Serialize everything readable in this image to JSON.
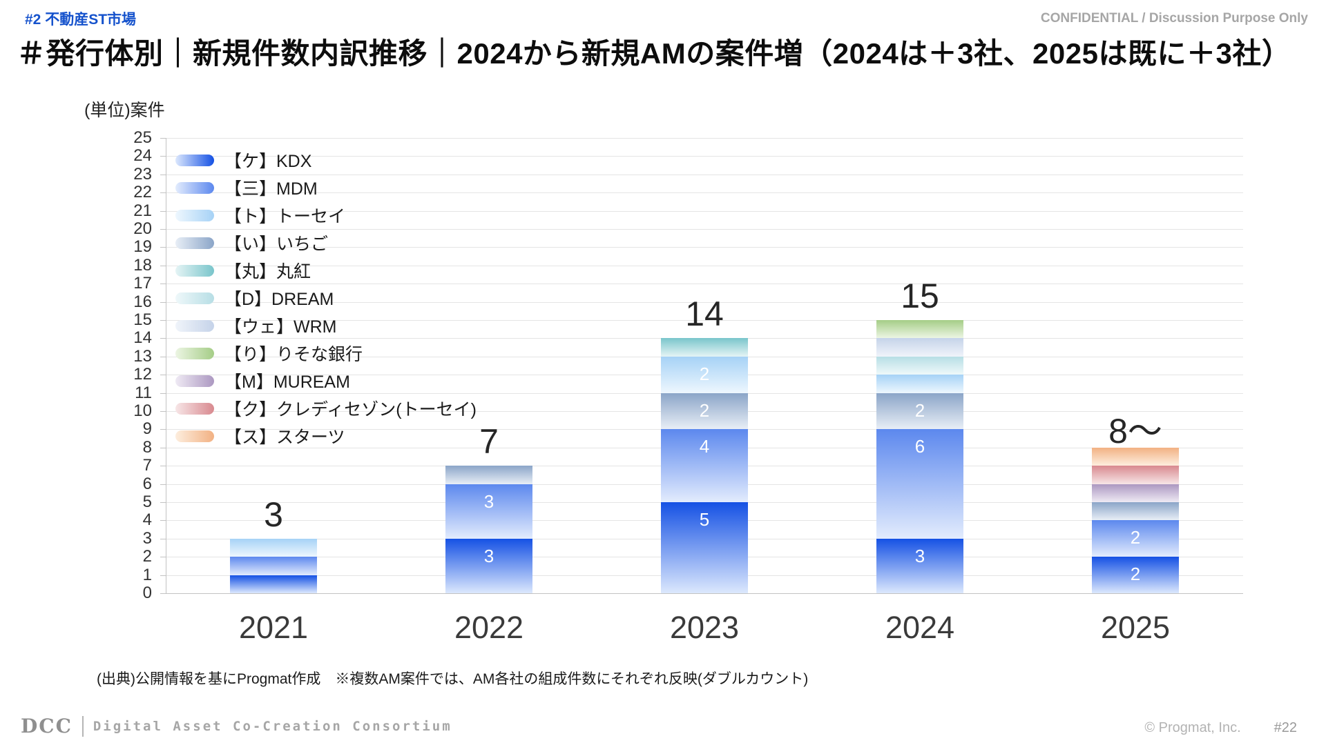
{
  "header": {
    "tag": "#2 不動産ST市場",
    "confidential": "CONFIDENTIAL / Discussion Purpose Only"
  },
  "title": "＃発行体別｜新規件数内訳推移｜2024から新規AMの案件増（2024は＋3社、2025は既に＋3社）",
  "chart_data": {
    "type": "bar",
    "stacked": true,
    "unit_label": "(単位)案件",
    "ylim": [
      0,
      25
    ],
    "ytick_step": 1,
    "grid": true,
    "legend_position": "top-left",
    "categories": [
      "2021",
      "2022",
      "2023",
      "2024",
      "2025"
    ],
    "totals": [
      "3",
      "7",
      "14",
      "15",
      "8～"
    ],
    "series": [
      {
        "key": "kdx",
        "name": "【ケ】KDX",
        "color": "#1551e4",
        "color_light": "#dce8fd"
      },
      {
        "key": "mdm",
        "name": "【三】MDM",
        "color": "#5c88ee",
        "color_light": "#e3ecfd"
      },
      {
        "key": "tosei",
        "name": "【ト】トーセイ",
        "color": "#a6d2f6",
        "color_light": "#eef7fe"
      },
      {
        "key": "ichigo",
        "name": "【い】いちご",
        "color": "#8ba5c8",
        "color_light": "#e8eef6"
      },
      {
        "key": "marubeni",
        "name": "【丸】丸紅",
        "color": "#79c5cb",
        "color_light": "#e5f4f5"
      },
      {
        "key": "dream",
        "name": "【D】DREAM",
        "color": "#b7dee5",
        "color_light": "#eff8fa"
      },
      {
        "key": "wrm",
        "name": "【ウェ】WRM",
        "color": "#c5d3e9",
        "color_light": "#f0f4fa"
      },
      {
        "key": "risona",
        "name": "【り】りそな銀行",
        "color": "#a5cd87",
        "color_light": "#ecf5e3"
      },
      {
        "key": "muream",
        "name": "【M】MUREAM",
        "color": "#ac98c1",
        "color_light": "#efeaf4"
      },
      {
        "key": "credit",
        "name": "【ク】クレディセゾン(トーセイ)",
        "color": "#d8898f",
        "color_light": "#f7e6e7"
      },
      {
        "key": "starts",
        "name": "【ス】スターツ",
        "color": "#f2b183",
        "color_light": "#fdeede"
      }
    ],
    "bars": [
      {
        "category": "2021",
        "total": "3",
        "segments": [
          {
            "series": "kdx",
            "value": 1,
            "label": ""
          },
          {
            "series": "mdm",
            "value": 1,
            "label": ""
          },
          {
            "series": "tosei",
            "value": 1,
            "label": ""
          }
        ]
      },
      {
        "category": "2022",
        "total": "7",
        "segments": [
          {
            "series": "kdx",
            "value": 3,
            "label": "3"
          },
          {
            "series": "mdm",
            "value": 3,
            "label": "3"
          },
          {
            "series": "ichigo",
            "value": 1,
            "label": ""
          }
        ]
      },
      {
        "category": "2023",
        "total": "14",
        "segments": [
          {
            "series": "kdx",
            "value": 5,
            "label": "5"
          },
          {
            "series": "mdm",
            "value": 4,
            "label": "4"
          },
          {
            "series": "ichigo",
            "value": 2,
            "label": "2"
          },
          {
            "series": "tosei",
            "value": 2,
            "label": "2"
          },
          {
            "series": "marubeni",
            "value": 1,
            "label": ""
          }
        ]
      },
      {
        "category": "2024",
        "total": "15",
        "segments": [
          {
            "series": "kdx",
            "value": 3,
            "label": "3"
          },
          {
            "series": "mdm",
            "value": 6,
            "label": "6"
          },
          {
            "series": "ichigo",
            "value": 2,
            "label": "2"
          },
          {
            "series": "tosei",
            "value": 1,
            "label": ""
          },
          {
            "series": "dream",
            "value": 1,
            "label": ""
          },
          {
            "series": "wrm",
            "value": 1,
            "label": ""
          },
          {
            "series": "risona",
            "value": 1,
            "label": ""
          }
        ]
      },
      {
        "category": "2025",
        "total": "8～",
        "segments": [
          {
            "series": "kdx",
            "value": 2,
            "label": "2"
          },
          {
            "series": "mdm",
            "value": 2,
            "label": "2"
          },
          {
            "series": "ichigo",
            "value": 1,
            "label": ""
          },
          {
            "series": "muream",
            "value": 1,
            "label": ""
          },
          {
            "series": "credit",
            "value": 1,
            "label": ""
          },
          {
            "series": "starts",
            "value": 1,
            "label": ""
          }
        ]
      }
    ]
  },
  "source_note": "(出典)公開情報を基にProgmat作成　※複数AM案件では、AM各社の組成件数にそれぞれ反映(ダブルカウント)",
  "footer": {
    "logo": "DCC",
    "logo_text": "Digital Asset Co-Creation Consortium",
    "copyright": "© Progmat, Inc.",
    "page_number": "#22"
  }
}
